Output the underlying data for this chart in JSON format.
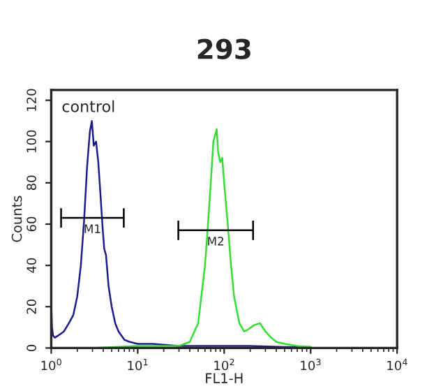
{
  "chart_data": {
    "type": "line",
    "title": "293",
    "xlabel": "FL1-H",
    "ylabel": "Counts",
    "log": "x",
    "xlim": [
      1,
      10000
    ],
    "ylim": [
      0,
      125
    ],
    "xticks": [
      {
        "value": 1,
        "label": "10$^{0}$"
      },
      {
        "value": 10,
        "label": "10$^{1}$"
      },
      {
        "value": 100,
        "label": "10$^{2}$"
      },
      {
        "value": 1000,
        "label": "10$^{3}$"
      },
      {
        "value": 10000,
        "label": "10$^{4}$"
      }
    ],
    "yticks": [
      0,
      20,
      40,
      60,
      80,
      100,
      120
    ],
    "grid": false,
    "legend": false,
    "annotations": [
      "control"
    ],
    "series": [
      {
        "color": "#1c1c8a",
        "x": [
          1.0,
          1.02,
          1.05,
          1.1,
          1.2,
          1.4,
          1.6,
          1.8,
          2.0,
          2.2,
          2.4,
          2.6,
          2.8,
          2.95,
          3.1,
          3.3,
          3.5,
          3.7,
          3.9,
          4.1,
          4.3,
          4.6,
          5.0,
          5.5,
          6.0,
          7.0,
          8.0,
          10,
          15,
          30,
          60,
          100,
          200,
          500,
          1000
        ],
        "values": [
          22,
          10,
          6,
          5,
          6,
          8,
          12,
          16,
          25,
          40,
          62,
          88,
          105,
          110,
          98,
          100,
          90,
          75,
          60,
          48,
          45,
          30,
          20,
          12,
          8,
          4,
          3,
          2,
          2,
          1,
          1,
          1,
          1,
          0.5,
          0.5
        ]
      },
      {
        "color": "#33dd33",
        "x": [
          1,
          3,
          10,
          20,
          30,
          35,
          40,
          50,
          60,
          65,
          70,
          75,
          82,
          85,
          90,
          95,
          100,
          110,
          120,
          130,
          150,
          170,
          190,
          220,
          260,
          300,
          350,
          400,
          500,
          700,
          1000
        ],
        "values": [
          0,
          0,
          1,
          1,
          1,
          2,
          3,
          12,
          40,
          60,
          80,
          100,
          106,
          95,
          90,
          92,
          80,
          60,
          40,
          25,
          12,
          8,
          9,
          11,
          12,
          8,
          5,
          3,
          2,
          1,
          0.5
        ]
      },
      {
        "type": "line",
        "name": "M1",
        "color": "#000000",
        "x": [
          1.3,
          6.9
        ],
        "values": [
          63,
          63
        ]
      },
      {
        "type": "line",
        "name": "M2",
        "color": "#000000",
        "x": [
          29.5,
          216
        ],
        "values": [
          57,
          57
        ]
      }
    ]
  }
}
